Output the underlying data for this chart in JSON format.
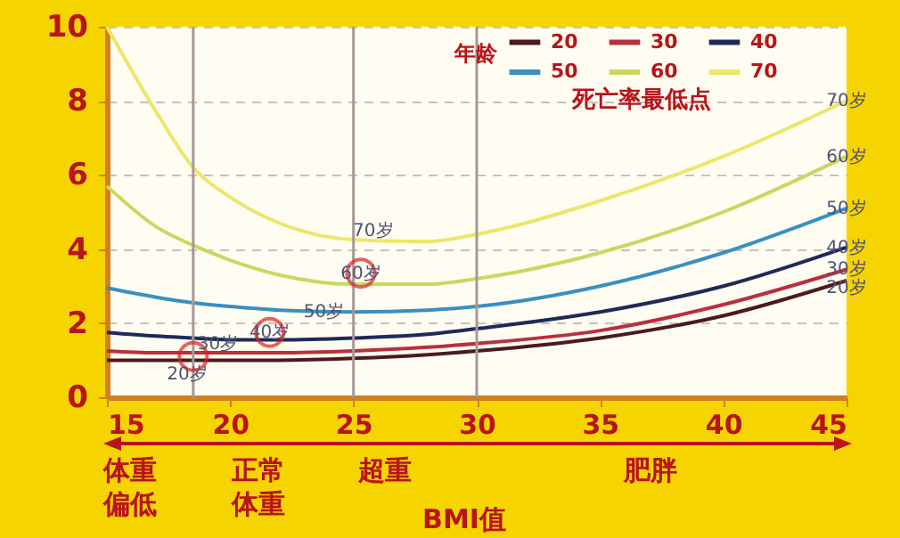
{
  "chart_data": {
    "type": "line",
    "xlabel": "BMI值",
    "legend_title": "年龄",
    "x": [
      15,
      17,
      18.5,
      20,
      22,
      25,
      28,
      30,
      35,
      40,
      45
    ],
    "series": [
      {
        "name": "20",
        "color": "#4a1a1e",
        "values": [
          1.0,
          1.0,
          1.0,
          1.0,
          1.0,
          1.05,
          1.15,
          1.25,
          1.6,
          2.2,
          3.15
        ]
      },
      {
        "name": "30",
        "color": "#b8303c",
        "values": [
          1.25,
          1.2,
          1.2,
          1.2,
          1.2,
          1.25,
          1.35,
          1.45,
          1.8,
          2.5,
          3.45
        ]
      },
      {
        "name": "40",
        "color": "#1e2a58",
        "values": [
          1.75,
          1.65,
          1.6,
          1.55,
          1.55,
          1.6,
          1.7,
          1.85,
          2.3,
          3.0,
          4.05
        ]
      },
      {
        "name": "50",
        "color": "#3a8fc0",
        "values": [
          2.95,
          2.7,
          2.55,
          2.45,
          2.35,
          2.3,
          2.35,
          2.45,
          3.0,
          3.9,
          5.1
        ]
      },
      {
        "name": "60",
        "color": "#c8d860",
        "values": [
          5.7,
          4.6,
          4.1,
          3.7,
          3.3,
          3.05,
          3.05,
          3.2,
          3.9,
          5.0,
          6.5
        ]
      },
      {
        "name": "70",
        "color": "#ece66a",
        "values": [
          10,
          7.7,
          6.2,
          5.4,
          4.7,
          4.25,
          4.2,
          4.4,
          5.3,
          6.5,
          8.0
        ]
      },
      {
        "type": "scatter",
        "color": "#e02020",
        "x": [
          18.5,
          21.6,
          25.3
        ],
        "values": [
          1.1,
          1.75,
          3.35
        ]
      }
    ],
    "xlim": [
      15,
      45
    ],
    "xticks": [
      15,
      20,
      25,
      30,
      35,
      40,
      45
    ],
    "ylim": [
      0,
      10
    ],
    "yticks": [
      0,
      2,
      4,
      6,
      8,
      10
    ],
    "grid": "y",
    "legend": "top right",
    "line_style": "solid",
    "ref_lines": [
      {
        "axis": "x",
        "value": 18.5,
        "color": "#a89898"
      },
      {
        "axis": "x",
        "value": 25,
        "color": "#a89898"
      },
      {
        "axis": "x",
        "value": 30,
        "color": "#a89898"
      }
    ],
    "annotations": [
      "死亡率最低点",
      "体重偏低",
      "正常体重",
      "超重",
      "肥胖",
      "20岁",
      {
        "text": "70岁",
        "x": 45,
        "y": 8.0
      },
      {
        "text": "60岁",
        "x": 45,
        "y": 6.5
      },
      {
        "text": "50岁",
        "x": 45,
        "y": 5.1
      },
      {
        "text": "40岁",
        "x": 45,
        "y": 4.05
      },
      {
        "text": "30岁",
        "x": 45,
        "y": 3.45
      },
      {
        "text": "20岁",
        "x": 45,
        "y": 2.95
      },
      {
        "text": "30岁",
        "x": 19.5,
        "y": 1.45
      },
      {
        "text": "40岁",
        "x": 21.6,
        "y": 1.75
      },
      {
        "text": "50岁",
        "x": 23.8,
        "y": 2.3
      },
      {
        "text": "60岁",
        "x": 25.3,
        "y": 3.35
      },
      {
        "text": "70岁",
        "x": 25.8,
        "y": 4.5
      }
    ]
  }
}
